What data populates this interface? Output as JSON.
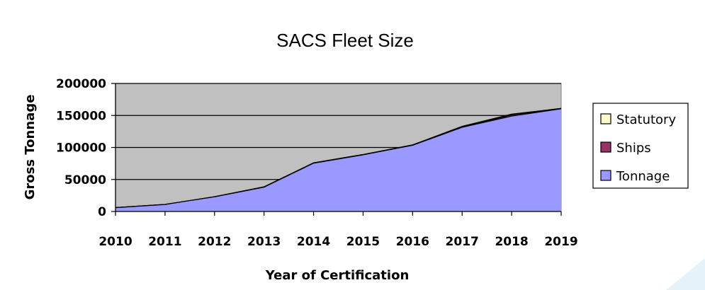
{
  "chart_data": {
    "type": "area",
    "title": "SACS Fleet Size",
    "xlabel": "Year of Certification",
    "ylabel": "Gross Tonnage",
    "x": [
      "2010",
      "2011",
      "2012",
      "2013",
      "2014",
      "2015",
      "2016",
      "2017",
      "2018",
      "2019"
    ],
    "ylim": [
      0,
      200000
    ],
    "yticks": [
      "0",
      "50000",
      "100000",
      "150000",
      "200000"
    ],
    "grid": true,
    "legend_position": "right",
    "series": [
      {
        "name": "Statutory",
        "values": [
          6000,
          11000,
          23000,
          38500,
          76000,
          89000,
          104000,
          133000,
          152000,
          161000
        ],
        "color": "#ffffcc"
      },
      {
        "name": "Ships",
        "values": [
          6000,
          11000,
          23000,
          38500,
          76000,
          89000,
          104000,
          132000,
          151000,
          161000
        ],
        "color": "#993366"
      },
      {
        "name": "Tonnage",
        "values": [
          6000,
          11000,
          23000,
          38000,
          75500,
          88500,
          103500,
          131500,
          149000,
          160500
        ],
        "color": "#9999ff"
      }
    ],
    "plot_background": "#c0c0c0"
  }
}
